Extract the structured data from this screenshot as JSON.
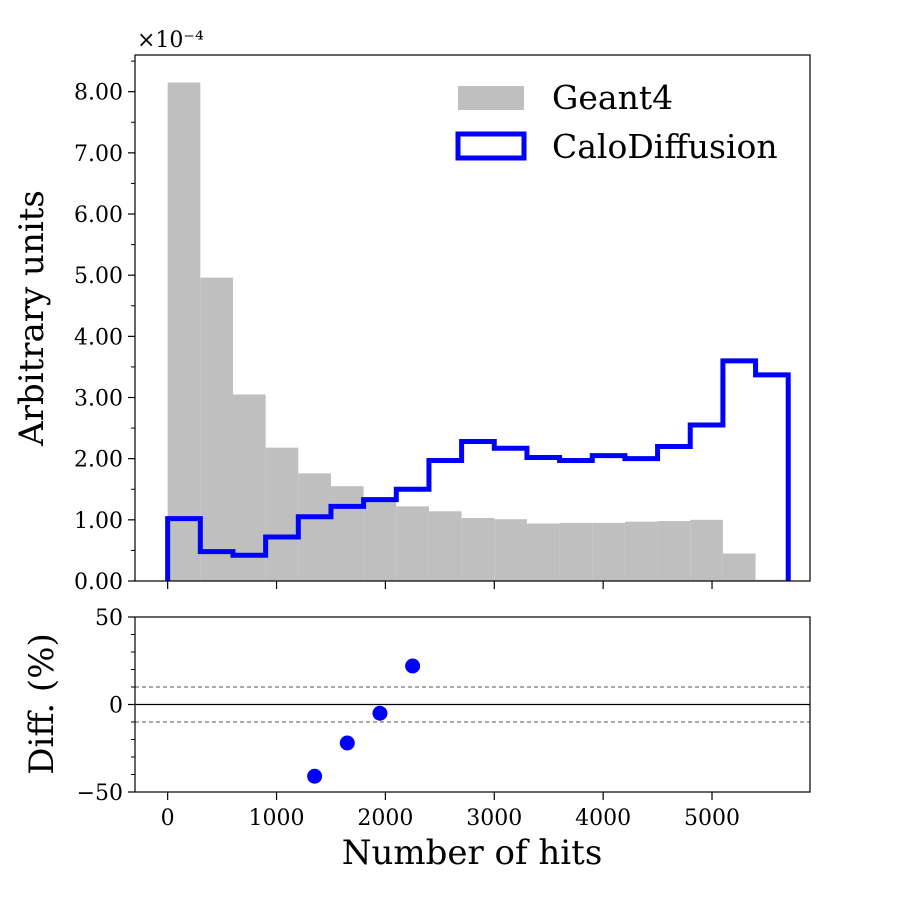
{
  "chart_data": [
    {
      "type": "bar",
      "panel": "main",
      "ylabel": "Arbitrary units",
      "xlabel": "",
      "y_exponent_label": "×10⁻⁴",
      "xlim": [
        -300,
        5900
      ],
      "ylim": [
        0,
        8.6
      ],
      "y_scale_factor": "1e-4",
      "yticks": [
        "0.00",
        "1.00",
        "2.00",
        "3.00",
        "4.00",
        "5.00",
        "6.00",
        "7.00",
        "8.00"
      ],
      "bin_edges": [
        0,
        300,
        600,
        900,
        1200,
        1500,
        1800,
        2100,
        2400,
        2700,
        3000,
        3300,
        3600,
        3900,
        4200,
        4500,
        4800,
        5100,
        5400,
        5700
      ],
      "series": [
        {
          "name": "Geant4",
          "style": "filled",
          "color": "#bfbfbf",
          "values": [
            8.15,
            4.96,
            3.05,
            2.18,
            1.76,
            1.55,
            1.3,
            1.22,
            1.14,
            1.03,
            1.01,
            0.94,
            0.95,
            0.95,
            0.97,
            0.98,
            1.0,
            0.45,
            0.02
          ]
        },
        {
          "name": "CaloDiffusion",
          "style": "step",
          "color": "#0000ff",
          "values": [
            1.02,
            0.48,
            0.42,
            0.72,
            1.05,
            1.22,
            1.33,
            1.5,
            1.97,
            2.28,
            2.17,
            2.02,
            1.97,
            2.05,
            2.0,
            2.2,
            2.55,
            3.6,
            3.37
          ]
        }
      ],
      "legend": {
        "position": "upper-right",
        "entries": [
          "Geant4",
          "CaloDiffusion"
        ]
      },
      "grid": false
    },
    {
      "type": "scatter",
      "panel": "ratio",
      "xlabel": "Number of hits",
      "ylabel": "Diff. (%)",
      "xlim": [
        -300,
        5900
      ],
      "ylim": [
        -50,
        50
      ],
      "xticks": [
        "0",
        "1000",
        "2000",
        "3000",
        "4000",
        "5000"
      ],
      "yticks": [
        "−50",
        "0",
        "50"
      ],
      "reference_lines": [
        {
          "y": 0,
          "style": "solid"
        },
        {
          "y": 10,
          "style": "dashed"
        },
        {
          "y": -10,
          "style": "dashed"
        }
      ],
      "series": [
        {
          "name": "",
          "color": "#0000ff",
          "points": [
            {
              "x": 1350,
              "y": -41
            },
            {
              "x": 1650,
              "y": -22
            },
            {
              "x": 1950,
              "y": -5
            },
            {
              "x": 2250,
              "y": 22
            }
          ]
        }
      ],
      "grid": false
    }
  ]
}
